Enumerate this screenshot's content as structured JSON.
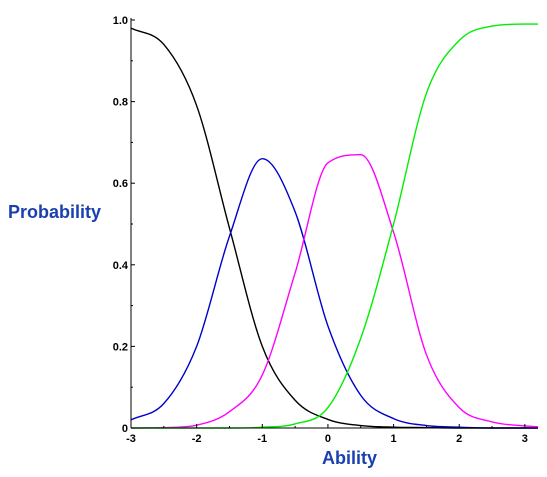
{
  "chart_data": {
    "type": "line",
    "title": "",
    "xlabel": "Ability",
    "ylabel": "Probability",
    "xlim": [
      -3,
      3.2
    ],
    "ylim": [
      0,
      1.0
    ],
    "x_ticks": [
      "-3",
      "-2",
      "-1",
      "0",
      "1",
      "2",
      "3"
    ],
    "y_ticks": [
      "0",
      "0.2",
      "0.4",
      "0.6",
      "0.8",
      "1.0"
    ],
    "grid": false,
    "legend": "none",
    "label_color": "#1a3fb0",
    "x": [
      -3.0,
      -2.5,
      -2.0,
      -1.5,
      -1.0,
      -0.5,
      0.0,
      0.5,
      1.0,
      1.5,
      2.0,
      2.5,
      3.0,
      3.2
    ],
    "series": [
      {
        "color": "#000000",
        "values": [
          0.98,
          0.94,
          0.79,
          0.49,
          0.2,
          0.068,
          0.021,
          0.006,
          0.002,
          0.001,
          0.0,
          0.0,
          0.0,
          0.0
        ]
      },
      {
        "color": "#0000cc",
        "values": [
          0.02,
          0.06,
          0.2,
          0.47,
          0.66,
          0.53,
          0.25,
          0.08,
          0.023,
          0.006,
          0.002,
          0.0,
          0.0,
          0.0
        ]
      },
      {
        "color": "#ff00ff",
        "values": [
          0.0,
          0.001,
          0.007,
          0.04,
          0.13,
          0.38,
          0.65,
          0.67,
          0.48,
          0.18,
          0.05,
          0.015,
          0.005,
          0.003
        ]
      },
      {
        "color": "#00ee00",
        "values": [
          0.0,
          0.0,
          0.0,
          0.0,
          0.002,
          0.01,
          0.05,
          0.22,
          0.5,
          0.82,
          0.95,
          0.985,
          0.99,
          0.99
        ]
      }
    ]
  }
}
